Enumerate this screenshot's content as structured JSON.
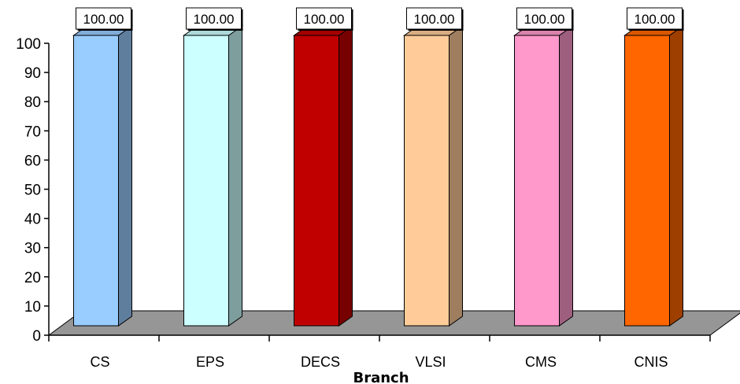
{
  "chart_data": {
    "type": "bar",
    "title": "",
    "xlabel": "Branch",
    "ylabel": "",
    "ylim": [
      0,
      100
    ],
    "yticks": [
      0,
      10,
      20,
      30,
      40,
      50,
      60,
      70,
      80,
      90,
      100
    ],
    "ytick_labels": [
      "0",
      "10",
      "20",
      "30",
      "40",
      "50",
      "60",
      "70",
      "80",
      "90",
      "100"
    ],
    "categories": [
      "CS",
      "EPS",
      "DECS",
      "VLSI",
      "CMS",
      "CNIS"
    ],
    "values": [
      100.0,
      100.0,
      100.0,
      100.0,
      100.0,
      100.0
    ],
    "data_labels": [
      "100.00",
      "100.00",
      "100.00",
      "100.00",
      "100.00",
      "100.00"
    ],
    "bar_colors": [
      "#99ccff",
      "#ccffff",
      "#c00000",
      "#ffcc99",
      "#ff99cc",
      "#ff6600"
    ],
    "floor_color": "#969696",
    "grid": false,
    "legend": "none",
    "style": "3d-column"
  }
}
